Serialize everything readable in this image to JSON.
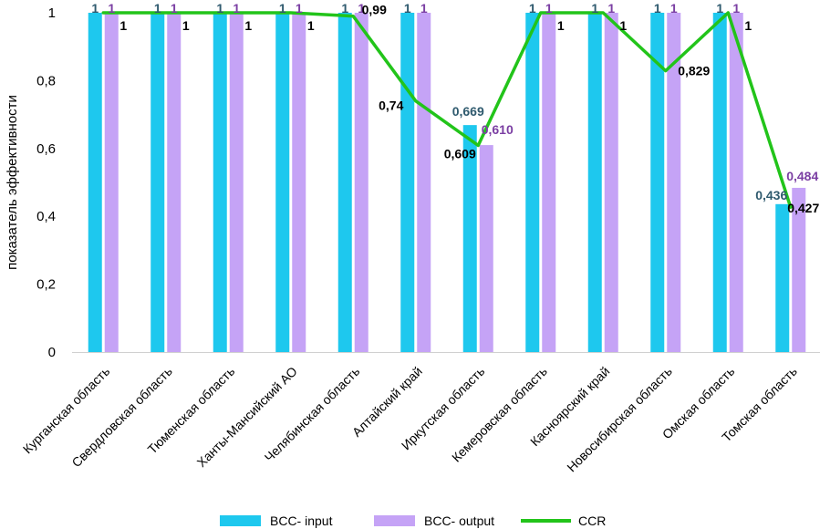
{
  "chart_data": {
    "type": "bar",
    "title": "",
    "xlabel": "",
    "ylabel": "показатель эффективности",
    "ylim": [
      0,
      1
    ],
    "yticks": [
      "0",
      "0,2",
      "0,4",
      "0,6",
      "0,8",
      "1"
    ],
    "categories": [
      "Курганская область",
      "Свердловская область",
      "Тюменская область",
      "Ханты-Мансийский АО",
      "Челябинская область",
      "Алтайский край",
      "Иркутская область",
      "Кемеровская область",
      "Касноярский край",
      "Новосибирская область",
      "Омская область",
      "Томская область"
    ],
    "series": [
      {
        "name": "BCC- input",
        "kind": "bar",
        "color": "#1ec8ee",
        "label_color": "#2f5a6e",
        "values": [
          1,
          1,
          1,
          1,
          1,
          1,
          0.669,
          1,
          1,
          1,
          1,
          0.436
        ],
        "labels": [
          "1",
          "1",
          "1",
          "1",
          "1",
          "1",
          "0,669",
          "1",
          "1",
          "1",
          "1",
          "0,436"
        ]
      },
      {
        "name": "BCC- output",
        "kind": "bar",
        "color": "#c5a3f6",
        "label_color": "#7b3fa3",
        "values": [
          1,
          1,
          1,
          1,
          1,
          1,
          0.61,
          1,
          1,
          1,
          1,
          0.484
        ],
        "labels": [
          "1",
          "1",
          "1",
          "1",
          "1",
          "1",
          "0,610",
          "1",
          "1",
          "1",
          "1",
          "0,484"
        ]
      },
      {
        "name": "CCR",
        "kind": "line",
        "color": "#22c41a",
        "label_color": "#000000",
        "values": [
          1,
          1,
          1,
          1,
          0.99,
          0.74,
          0.609,
          1,
          1,
          0.829,
          1,
          0.427
        ],
        "labels": [
          "1",
          "1",
          "1",
          "1",
          "0,99",
          "0,74",
          "0,609",
          "1",
          "1",
          "0,829",
          "1",
          "0,427"
        ]
      }
    ],
    "legend": {
      "position": "bottom"
    },
    "grid": false
  }
}
